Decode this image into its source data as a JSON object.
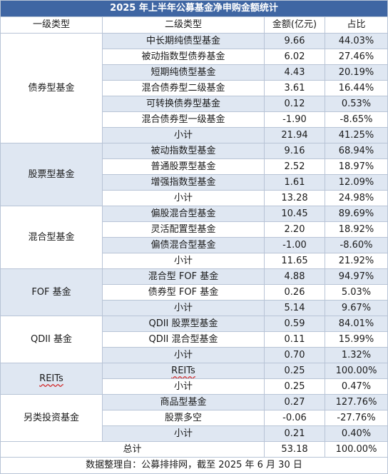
{
  "title": "2025 年上半年公募基金净申购金额统计",
  "headers": {
    "col1": "一级类型",
    "col2": "二级类型",
    "col3": "金额(亿元)",
    "col4": "占比"
  },
  "groups": [
    {
      "name": "债券型基金",
      "rows": [
        {
          "sub": "中长期纯债型基金",
          "amount": "9.66",
          "pct": "44.03%"
        },
        {
          "sub": "被动指数型债券基金",
          "amount": "6.02",
          "pct": "27.46%"
        },
        {
          "sub": "短期纯债型基金",
          "amount": "4.43",
          "pct": "20.19%"
        },
        {
          "sub": "混合债券型二级基金",
          "amount": "3.61",
          "pct": "16.44%"
        },
        {
          "sub": "可转换债券型基金",
          "amount": "0.12",
          "pct": "0.53%"
        },
        {
          "sub": "混合债券型一级基金",
          "amount": "-1.90",
          "pct": "-8.65%"
        },
        {
          "sub": "小计",
          "amount": "21.94",
          "pct": "41.25%"
        }
      ]
    },
    {
      "name": "股票型基金",
      "rows": [
        {
          "sub": "被动指数型基金",
          "amount": "9.16",
          "pct": "68.94%"
        },
        {
          "sub": "普通股票型基金",
          "amount": "2.52",
          "pct": "18.97%"
        },
        {
          "sub": "增强指数型基金",
          "amount": "1.61",
          "pct": "12.09%"
        },
        {
          "sub": "小计",
          "amount": "13.28",
          "pct": "24.98%"
        }
      ]
    },
    {
      "name": "混合型基金",
      "rows": [
        {
          "sub": "偏股混合型基金",
          "amount": "10.45",
          "pct": "89.69%"
        },
        {
          "sub": "灵活配置型基金",
          "amount": "2.20",
          "pct": "18.92%"
        },
        {
          "sub": "偏债混合型基金",
          "amount": "-1.00",
          "pct": "-8.60%"
        },
        {
          "sub": "小计",
          "amount": "11.65",
          "pct": "21.92%"
        }
      ]
    },
    {
      "name": "FOF 基金",
      "rows": [
        {
          "sub": "混合型 FOF 基金",
          "amount": "4.88",
          "pct": "94.97%"
        },
        {
          "sub": "债券型 FOF 基金",
          "amount": "0.26",
          "pct": "5.03%"
        },
        {
          "sub": "小计",
          "amount": "5.14",
          "pct": "9.67%"
        }
      ]
    },
    {
      "name": "QDII 基金",
      "rows": [
        {
          "sub": "QDII 股票型基金",
          "amount": "0.59",
          "pct": "84.01%"
        },
        {
          "sub": "QDII 混合型基金",
          "amount": "0.11",
          "pct": "15.99%"
        },
        {
          "sub": "小计",
          "amount": "0.70",
          "pct": "1.32%"
        }
      ]
    },
    {
      "name": "REITs",
      "rows": [
        {
          "sub": "REITs",
          "amount": "0.25",
          "pct": "100.00%"
        },
        {
          "sub": "小计",
          "amount": "0.25",
          "pct": "0.47%"
        }
      ]
    },
    {
      "name": "另类投资基金",
      "rows": [
        {
          "sub": "商品型基金",
          "amount": "0.27",
          "pct": "127.76%"
        },
        {
          "sub": "股票多空",
          "amount": "-0.06",
          "pct": "-27.76%"
        },
        {
          "sub": "小计",
          "amount": "0.21",
          "pct": "0.40%"
        }
      ]
    }
  ],
  "total": {
    "label": "总计",
    "amount": "53.18",
    "pct": "100.00%"
  },
  "source": "数据整理自：公募排排网，截至 2025 年 6 月 30 日",
  "colors": {
    "title_bg": "#3f66a3",
    "stripe": "#dfe7f2",
    "border": "#b8c4d6"
  }
}
